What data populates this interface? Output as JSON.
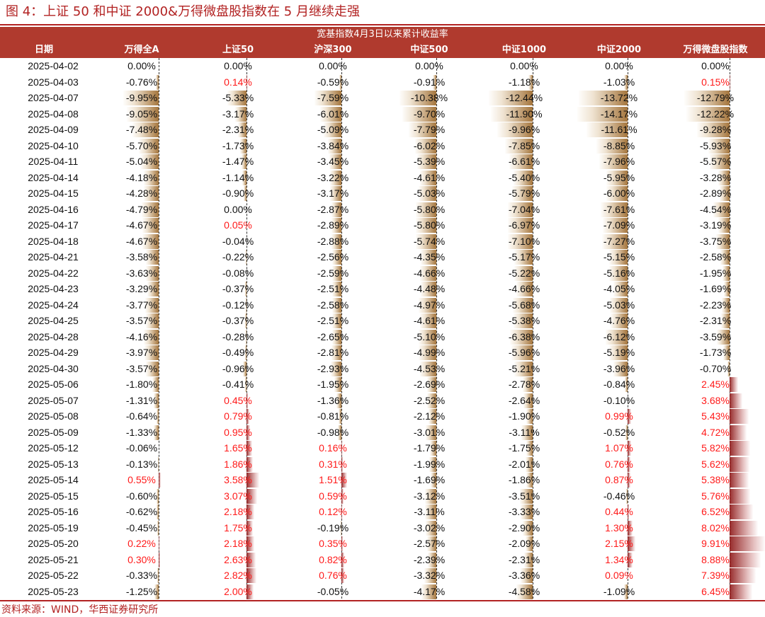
{
  "title": "图 4：上证 50 和中证 2000&万得微盘股指数在 5 月继续走强",
  "header_group": "宽基指数4月3日以来累计收益率",
  "source": "资料来源：WIND，华西证券研究所",
  "colors": {
    "accent": "#b03a2e",
    "negative_bar": "#c8a070",
    "positive_bar": "#a83232",
    "positive_text": "#ff1a1a"
  },
  "chart_data": {
    "type": "table",
    "columns": [
      "日期",
      "万得全A",
      "上证50",
      "沪深300",
      "中证500",
      "中证1000",
      "中证2000",
      "万得微盘股指数"
    ],
    "rows": [
      {
        "date": "2025-04-02",
        "values": [
          "0.00%",
          "0.00%",
          "0.00%",
          "0.00%",
          "0.00%",
          "0.00%",
          "0.00%"
        ]
      },
      {
        "date": "2025-04-03",
        "values": [
          "-0.76%",
          "0.14%",
          "-0.59%",
          "-0.91%",
          "-1.18%",
          "-1.03%",
          "0.15%"
        ]
      },
      {
        "date": "2025-04-07",
        "values": [
          "-9.95%",
          "-5.33%",
          "-7.59%",
          "-10.38%",
          "-12.44%",
          "-13.72%",
          "-12.79%"
        ]
      },
      {
        "date": "2025-04-08",
        "values": [
          "-9.05%",
          "-3.17%",
          "-6.01%",
          "-9.70%",
          "-11.90%",
          "-14.17%",
          "-12.22%"
        ]
      },
      {
        "date": "2025-04-09",
        "values": [
          "-7.48%",
          "-2.31%",
          "-5.09%",
          "-7.79%",
          "-9.96%",
          "-11.61%",
          "-9.28%"
        ]
      },
      {
        "date": "2025-04-10",
        "values": [
          "-5.70%",
          "-1.73%",
          "-3.84%",
          "-6.02%",
          "-7.85%",
          "-8.85%",
          "-5.93%"
        ]
      },
      {
        "date": "2025-04-11",
        "values": [
          "-5.04%",
          "-1.47%",
          "-3.45%",
          "-5.39%",
          "-6.61%",
          "-7.96%",
          "-5.57%"
        ]
      },
      {
        "date": "2025-04-14",
        "values": [
          "-4.18%",
          "-1.14%",
          "-3.22%",
          "-4.61%",
          "-5.40%",
          "-5.95%",
          "-3.28%"
        ]
      },
      {
        "date": "2025-04-15",
        "values": [
          "-4.28%",
          "-0.90%",
          "-3.17%",
          "-5.03%",
          "-5.79%",
          "-6.00%",
          "-2.89%"
        ]
      },
      {
        "date": "2025-04-16",
        "values": [
          "-4.79%",
          "0.00%",
          "-2.87%",
          "-5.80%",
          "-7.04%",
          "-7.61%",
          "-4.54%"
        ]
      },
      {
        "date": "2025-04-17",
        "values": [
          "-4.67%",
          "0.05%",
          "-2.89%",
          "-5.80%",
          "-6.97%",
          "-7.09%",
          "-3.19%"
        ]
      },
      {
        "date": "2025-04-18",
        "values": [
          "-4.67%",
          "-0.04%",
          "-2.88%",
          "-5.74%",
          "-7.10%",
          "-7.27%",
          "-3.75%"
        ]
      },
      {
        "date": "2025-04-21",
        "values": [
          "-3.58%",
          "-0.22%",
          "-2.56%",
          "-4.35%",
          "-5.17%",
          "-5.15%",
          "-2.58%"
        ]
      },
      {
        "date": "2025-04-22",
        "values": [
          "-3.63%",
          "-0.08%",
          "-2.59%",
          "-4.66%",
          "-5.22%",
          "-5.16%",
          "-1.95%"
        ]
      },
      {
        "date": "2025-04-23",
        "values": [
          "-3.29%",
          "-0.37%",
          "-2.51%",
          "-4.48%",
          "-4.66%",
          "-4.05%",
          "-1.69%"
        ]
      },
      {
        "date": "2025-04-24",
        "values": [
          "-3.77%",
          "-0.12%",
          "-2.58%",
          "-4.97%",
          "-5.68%",
          "-5.03%",
          "-2.23%"
        ]
      },
      {
        "date": "2025-04-25",
        "values": [
          "-3.57%",
          "-0.37%",
          "-2.51%",
          "-4.61%",
          "-5.38%",
          "-4.76%",
          "-2.31%"
        ]
      },
      {
        "date": "2025-04-28",
        "values": [
          "-4.16%",
          "-0.28%",
          "-2.65%",
          "-5.10%",
          "-6.38%",
          "-6.12%",
          "-3.59%"
        ]
      },
      {
        "date": "2025-04-29",
        "values": [
          "-3.97%",
          "-0.49%",
          "-2.81%",
          "-4.99%",
          "-5.96%",
          "-5.19%",
          "-1.73%"
        ]
      },
      {
        "date": "2025-04-30",
        "values": [
          "-3.57%",
          "-0.96%",
          "-2.93%",
          "-4.53%",
          "-5.21%",
          "-3.96%",
          "-0.70%"
        ]
      },
      {
        "date": "2025-05-06",
        "values": [
          "-1.80%",
          "-0.41%",
          "-1.95%",
          "-2.69%",
          "-2.78%",
          "-0.84%",
          "2.45%"
        ]
      },
      {
        "date": "2025-05-07",
        "values": [
          "-1.31%",
          "0.45%",
          "-1.36%",
          "-2.52%",
          "-2.64%",
          "-0.10%",
          "3.68%"
        ]
      },
      {
        "date": "2025-05-08",
        "values": [
          "-0.64%",
          "0.79%",
          "-0.81%",
          "-2.12%",
          "-1.90%",
          "0.99%",
          "5.43%"
        ]
      },
      {
        "date": "2025-05-09",
        "values": [
          "-1.33%",
          "0.95%",
          "-0.98%",
          "-3.01%",
          "-3.11%",
          "-0.52%",
          "4.72%"
        ]
      },
      {
        "date": "2025-05-12",
        "values": [
          "-0.06%",
          "1.65%",
          "0.16%",
          "-1.79%",
          "-1.75%",
          "1.07%",
          "5.82%"
        ]
      },
      {
        "date": "2025-05-13",
        "values": [
          "-0.13%",
          "1.86%",
          "0.31%",
          "-1.99%",
          "-2.01%",
          "0.76%",
          "5.62%"
        ]
      },
      {
        "date": "2025-05-14",
        "values": [
          "0.55%",
          "3.58%",
          "1.51%",
          "-1.69%",
          "-1.86%",
          "0.87%",
          "5.38%"
        ]
      },
      {
        "date": "2025-05-15",
        "values": [
          "-0.60%",
          "3.07%",
          "0.59%",
          "-3.12%",
          "-3.51%",
          "-0.46%",
          "5.76%"
        ]
      },
      {
        "date": "2025-05-16",
        "values": [
          "-0.62%",
          "2.18%",
          "0.12%",
          "-3.11%",
          "-3.33%",
          "0.44%",
          "6.52%"
        ]
      },
      {
        "date": "2025-05-19",
        "values": [
          "-0.45%",
          "1.75%",
          "-0.19%",
          "-3.02%",
          "-2.90%",
          "1.30%",
          "8.02%"
        ]
      },
      {
        "date": "2025-05-20",
        "values": [
          "0.22%",
          "2.18%",
          "0.35%",
          "-2.57%",
          "-2.09%",
          "2.15%",
          "9.91%"
        ]
      },
      {
        "date": "2025-05-21",
        "values": [
          "0.30%",
          "2.63%",
          "0.82%",
          "-2.39%",
          "-2.31%",
          "1.34%",
          "8.88%"
        ]
      },
      {
        "date": "2025-05-22",
        "values": [
          "-0.33%",
          "2.82%",
          "0.76%",
          "-3.32%",
          "-3.36%",
          "0.09%",
          "7.39%"
        ]
      },
      {
        "date": "2025-05-23",
        "values": [
          "-1.25%",
          "2.00%",
          "-0.05%",
          "-4.17%",
          "-4.58%",
          "-1.09%",
          "6.45%"
        ]
      }
    ]
  }
}
